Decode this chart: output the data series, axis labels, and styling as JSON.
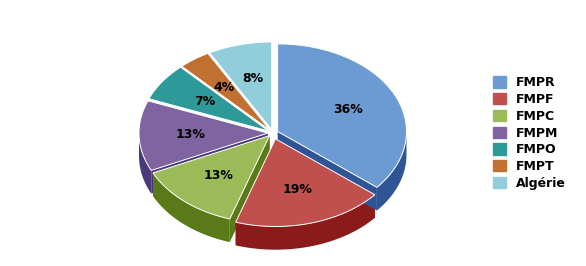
{
  "labels": [
    "FMPR",
    "FMPF",
    "FMPC",
    "FMPM",
    "FMPO",
    "FMPT",
    "Algérie"
  ],
  "values": [
    36,
    19,
    13,
    13,
    7,
    4,
    8
  ],
  "colors": [
    "#6B9BD2",
    "#C0504D",
    "#9BBB59",
    "#8064A2",
    "#2E9999",
    "#C07030",
    "#92CDDC"
  ],
  "dark_colors": [
    "#2F5597",
    "#8B1A1A",
    "#5A7A1A",
    "#4A3A7A",
    "#1A6666",
    "#7A4010",
    "#4A8BA0"
  ],
  "pct_labels": [
    "36%",
    "19%",
    "13%",
    "13%",
    "7%",
    "4%",
    "8%"
  ],
  "legend_labels": [
    "FMPR",
    "FMPF",
    "FMPC",
    "FMPM",
    "FMPO",
    "FMPT",
    "Algérie"
  ],
  "startangle": 90,
  "background_color": "#ffffff",
  "legend_colors": [
    "#6B9BD2",
    "#C0504D",
    "#9BBB59",
    "#8064A2",
    "#2E9999",
    "#C07030",
    "#92CDDC"
  ]
}
